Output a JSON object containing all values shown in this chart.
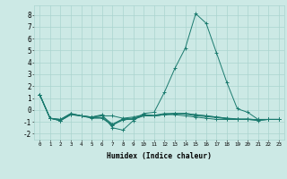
{
  "xlabel": "Humidex (Indice chaleur)",
  "xlim": [
    -0.5,
    23.5
  ],
  "ylim": [
    -2.5,
    8.8
  ],
  "yticks": [
    -2,
    -1,
    0,
    1,
    2,
    3,
    4,
    5,
    6,
    7,
    8
  ],
  "xticks": [
    0,
    1,
    2,
    3,
    4,
    5,
    6,
    7,
    8,
    9,
    10,
    11,
    12,
    13,
    14,
    15,
    16,
    17,
    18,
    19,
    20,
    21,
    22,
    23
  ],
  "background_color": "#cce9e5",
  "grid_color": "#aad4cf",
  "line_color": "#1a7a6e",
  "series": [
    [
      1.3,
      -0.7,
      -0.8,
      -0.3,
      -0.5,
      -0.6,
      -0.5,
      -0.5,
      -0.7,
      -0.6,
      -0.4,
      -0.5,
      -0.4,
      -0.4,
      -0.5,
      -0.6,
      -0.7,
      -0.8,
      -0.8,
      -0.8,
      -0.8,
      -0.8,
      -0.8,
      -0.8
    ],
    [
      1.3,
      -0.7,
      -0.8,
      -0.3,
      -0.5,
      -0.6,
      -0.4,
      -1.5,
      -1.7,
      -0.9,
      -0.3,
      -0.2,
      1.5,
      3.5,
      5.2,
      8.1,
      7.3,
      4.8,
      2.3,
      0.1,
      -0.2,
      -0.8,
      -0.8,
      -0.8
    ],
    [
      1.3,
      -0.7,
      -0.9,
      -0.35,
      -0.5,
      -0.6,
      -0.5,
      -1.2,
      -0.75,
      -0.7,
      -0.4,
      -0.45,
      -0.3,
      -0.3,
      -0.35,
      -0.5,
      -0.55,
      -0.65,
      -0.75,
      -0.8,
      -0.75,
      -0.85,
      -0.8,
      -0.8
    ],
    [
      1.3,
      -0.7,
      -0.9,
      -0.4,
      -0.5,
      -0.65,
      -0.65,
      -1.25,
      -0.85,
      -0.75,
      -0.5,
      -0.5,
      -0.4,
      -0.3,
      -0.3,
      -0.4,
      -0.5,
      -0.6,
      -0.7,
      -0.75,
      -0.8,
      -0.85,
      -0.8,
      -0.8
    ],
    [
      1.3,
      -0.7,
      -0.9,
      -0.4,
      -0.5,
      -0.7,
      -0.7,
      -1.3,
      -0.8,
      -0.8,
      -0.5,
      -0.5,
      -0.4,
      -0.3,
      -0.3,
      -0.4,
      -0.5,
      -0.6,
      -0.7,
      -0.8,
      -0.8,
      -0.9,
      -0.8,
      -0.8
    ]
  ]
}
